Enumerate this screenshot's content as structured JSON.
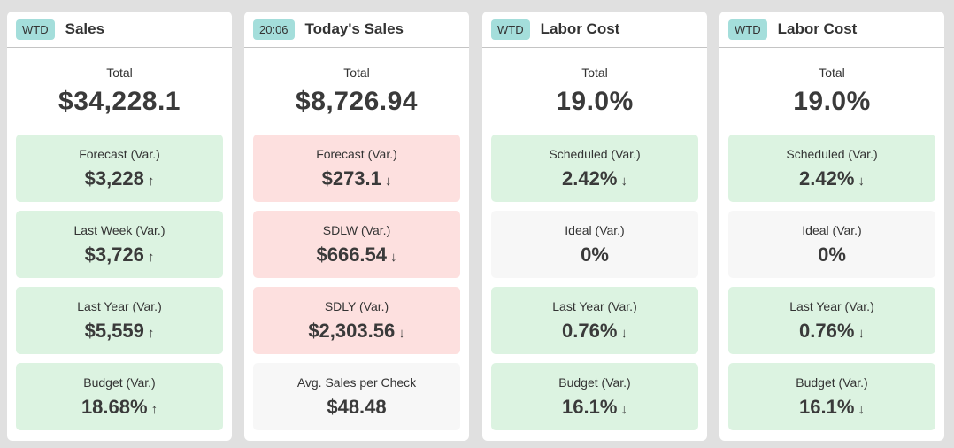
{
  "colors": {
    "good": "#dcf3e1",
    "bad": "#fde0df",
    "neutral": "#f7f7f7",
    "badge": "#a4dedb"
  },
  "cards": [
    {
      "badge": "WTD",
      "title": "Sales",
      "total_label": "Total",
      "total": "$34,228.1",
      "tiles": [
        {
          "label": "Forecast (Var.)",
          "value": "$3,228",
          "arrow": "↑",
          "status": "good"
        },
        {
          "label": "Last Week (Var.)",
          "value": "$3,726",
          "arrow": "↑",
          "status": "good"
        },
        {
          "label": "Last Year (Var.)",
          "value": "$5,559",
          "arrow": "↑",
          "status": "good"
        },
        {
          "label": "Budget (Var.)",
          "value": "18.68%",
          "arrow": "↑",
          "status": "good"
        }
      ]
    },
    {
      "badge": "20:06",
      "title": "Today's Sales",
      "total_label": "Total",
      "total": "$8,726.94",
      "tiles": [
        {
          "label": "Forecast (Var.)",
          "value": "$273.1",
          "arrow": "↓",
          "status": "bad"
        },
        {
          "label": "SDLW (Var.)",
          "value": "$666.54",
          "arrow": "↓",
          "status": "bad"
        },
        {
          "label": "SDLY (Var.)",
          "value": "$2,303.56",
          "arrow": "↓",
          "status": "bad"
        },
        {
          "label": "Avg. Sales per Check",
          "value": "$48.48",
          "arrow": "",
          "status": "neutral"
        }
      ]
    },
    {
      "badge": "WTD",
      "title": "Labor Cost",
      "total_label": "Total",
      "total": "19.0%",
      "tiles": [
        {
          "label": "Scheduled (Var.)",
          "value": "2.42%",
          "arrow": "↓",
          "status": "good"
        },
        {
          "label": "Ideal (Var.)",
          "value": "0%",
          "arrow": "",
          "status": "neutral"
        },
        {
          "label": "Last Year (Var.)",
          "value": "0.76%",
          "arrow": "↓",
          "status": "good"
        },
        {
          "label": "Budget (Var.)",
          "value": "16.1%",
          "arrow": "↓",
          "status": "good"
        }
      ]
    },
    {
      "badge": "WTD",
      "title": "Labor Cost",
      "total_label": "Total",
      "total": "19.0%",
      "tiles": [
        {
          "label": "Scheduled (Var.)",
          "value": "2.42%",
          "arrow": "↓",
          "status": "good"
        },
        {
          "label": "Ideal (Var.)",
          "value": "0%",
          "arrow": "",
          "status": "neutral"
        },
        {
          "label": "Last Year (Var.)",
          "value": "0.76%",
          "arrow": "↓",
          "status": "good"
        },
        {
          "label": "Budget (Var.)",
          "value": "16.1%",
          "arrow": "↓",
          "status": "good"
        }
      ]
    }
  ]
}
